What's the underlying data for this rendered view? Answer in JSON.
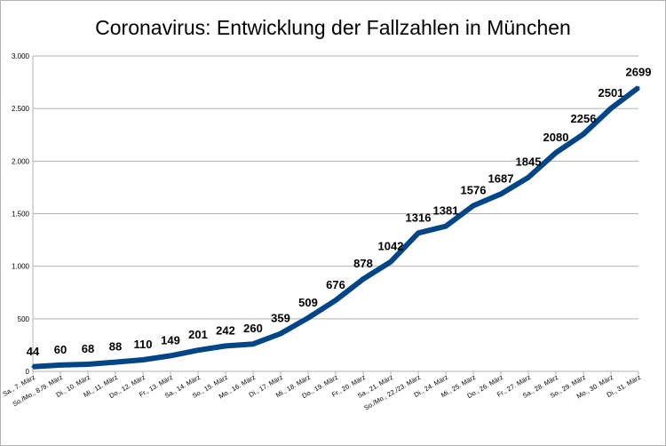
{
  "chart_data": {
    "type": "line",
    "title": "Coronavirus: Entwicklung der Fallzahlen in München",
    "xlabel": "",
    "ylabel": "",
    "ylim": [
      0,
      3000
    ],
    "yticks": [
      0,
      500,
      1000,
      1500,
      2000,
      2500,
      3000
    ],
    "ytick_labels": [
      "0",
      "500",
      "1.000",
      "1.500",
      "2.000",
      "2.500",
      "3.000"
    ],
    "grid": true,
    "legend": "none",
    "categories": [
      "Sa., 7. März",
      "So./Mo., 8./9. März",
      "Di., 10. März",
      "Mi., 11. März",
      "Do., 12. März",
      "Fr., 13. März",
      "Sa., 14. März",
      "So., 15. März",
      "Mo., 16. März",
      "Di., 17. März",
      "Mi., 18. März",
      "Do., 19. März",
      "Fr., 20. März",
      "Sa., 21. März",
      "So./Mo., 22./23. März",
      "Di., 24. März",
      "Mi., 25. März",
      "Do., 26. März",
      "Fr., 27. März",
      "Sa., 28. März",
      "So., 29. März",
      "Mo., 30. März",
      "Di., 31. März"
    ],
    "values": [
      44,
      60,
      68,
      88,
      110,
      149,
      201,
      242,
      260,
      359,
      509,
      676,
      878,
      1042,
      1316,
      1381,
      1576,
      1687,
      1845,
      2080,
      2256,
      2501,
      2699
    ],
    "colors": {
      "line": "#004586",
      "grid": "#b3b3b3"
    }
  }
}
